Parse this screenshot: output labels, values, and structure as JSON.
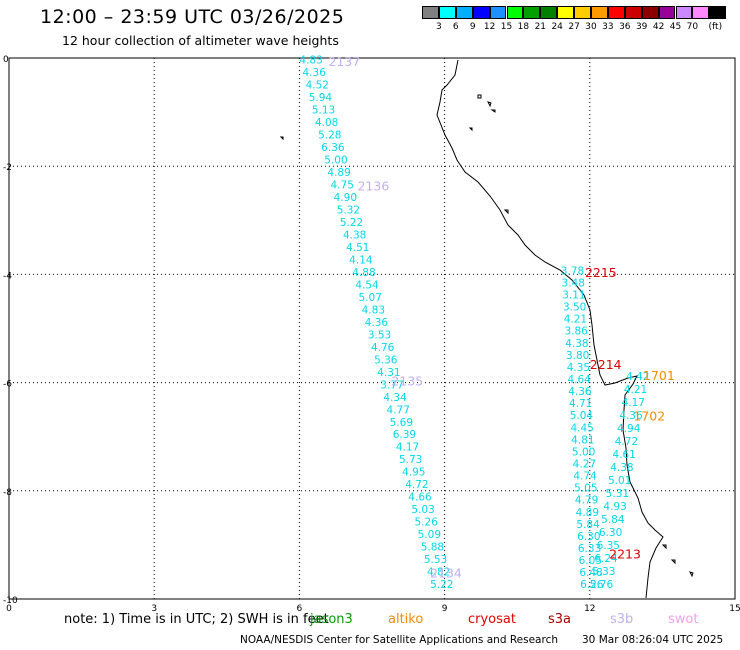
{
  "header": {
    "title": "12:00 – 23:59 UTC 03/26/2025",
    "subtitle": "12 hour collection of altimeter wave heights"
  },
  "legend": {
    "colors": [
      "#808080",
      "#00ffff",
      "#00b0ff",
      "#0000ff",
      "#1e90ff",
      "#00ff00",
      "#00a000",
      "#008000",
      "#ffff00",
      "#ffcc00",
      "#ff9900",
      "#ff0000",
      "#cc0000",
      "#8b0000",
      "#990099",
      "#cc88ff",
      "#ff88ff",
      "#000000"
    ],
    "labels": [
      "3",
      "6",
      "9",
      "12",
      "15",
      "18",
      "21",
      "24",
      "27",
      "30",
      "33",
      "36",
      "39",
      "42",
      "45",
      "70",
      "(ft)"
    ]
  },
  "axes": {
    "x_ticks": [
      "0",
      "3",
      "6",
      "9",
      "12",
      "15"
    ],
    "y_ticks": [
      "0",
      "-2",
      "-4",
      "-6",
      "-8",
      "-10"
    ]
  },
  "tracks": [
    {
      "label": "2137",
      "color": "#c0b0f0",
      "x": 6.6,
      "y": 0.15
    },
    {
      "label": "2136",
      "color": "#c0b0f0",
      "x": 7.2,
      "y": 2.45
    },
    {
      "label": "2135",
      "color": "#c0b0f0",
      "x": 7.9,
      "y": 6.05
    },
    {
      "label": "2134",
      "color": "#c0b0f0",
      "x": 8.7,
      "y": 9.6
    },
    {
      "label": "2215",
      "color": "#e00000",
      "x": 11.9,
      "y": 4.05
    },
    {
      "label": "2214",
      "color": "#e00000",
      "x": 12.0,
      "y": 5.75
    },
    {
      "label": "1701",
      "color": "#f08c00",
      "x": 13.1,
      "y": 5.95
    },
    {
      "label": "1702",
      "color": "#f08c00",
      "x": 12.9,
      "y": 6.7
    },
    {
      "label": "2213",
      "color": "#e00000",
      "x": 12.4,
      "y": 9.25
    }
  ],
  "wave_series": [
    {
      "name": "",
      "color": "#00d8e8",
      "values": [
        "4.83",
        "4.36",
        "4.52",
        "5.94",
        "5.13",
        "4.08",
        "5.28",
        "6.36",
        "5.00",
        "4.89",
        "4.75",
        "4.90",
        "5.32",
        "5.22",
        "4.38",
        "4.51",
        "4.14",
        "4.88",
        "4.54",
        "5.07",
        "4.83",
        "4.36",
        "3.53",
        "4.76",
        "5.36",
        "4.31",
        "3.77",
        "4.34",
        "4.77",
        "5.69",
        "6.39",
        "4.17",
        "5.73",
        "4.95",
        "4.72",
        "4.66",
        "5.03",
        "5.26",
        "5.09",
        "5.88",
        "5.53",
        "4.82",
        "5.22"
      ],
      "x_start": 6.0,
      "x_end": 8.7,
      "y_start": 0.1,
      "y_end": 9.8,
      "highlight": {
        "index": 3,
        "color": "#00a000"
      }
    },
    {
      "name": "",
      "color": "#00d8e8",
      "values": [
        "3.78",
        "3.48",
        "3.11",
        "3.50",
        "4.21",
        "3.86",
        "4.38",
        "3.80",
        "4.35",
        "4.64",
        "4.36",
        "4.71",
        "5.04",
        "4.45",
        "4.81",
        "5.00",
        "4.27",
        "4.74",
        "5.05",
        "4.79",
        "4.89",
        "5.84",
        "6.30",
        "6.33",
        "6.05",
        "6.48",
        "6.26"
      ],
      "x_start": 11.4,
      "x_end": 11.8,
      "y_start": 4.0,
      "y_end": 9.8
    },
    {
      "name": "",
      "color": "#00d8e8",
      "values": [
        "4.42",
        "4.21",
        "4.17",
        "4.36",
        "4.94",
        "4.72",
        "4.61",
        "4.38",
        "5.01",
        "5.31",
        "4.93",
        "5.84",
        "6.30",
        "6.35",
        "6.24",
        "5.33",
        "5.76"
      ],
      "x_start": 12.75,
      "x_end": 12.0,
      "y_start": 5.95,
      "y_end": 9.8
    }
  ],
  "footer": {
    "note": "note:  1) Time is in UTC; 2) SWH is in feet",
    "satellites": [
      {
        "name": "jason3",
        "color": "#00a000"
      },
      {
        "name": "altiko",
        "color": "#f08c00"
      },
      {
        "name": "cryosat",
        "color": "#e00000"
      },
      {
        "name": "s3a",
        "color": "#aa0000"
      },
      {
        "name": "s3b",
        "color": "#c0b0f0"
      },
      {
        "name": "swot",
        "color": "#f0a0f0"
      }
    ],
    "credit": "NOAA/NESDIS Center for Satellite Applications and Research",
    "timestamp": "30 Mar 08:26:04 UTC 2025"
  }
}
